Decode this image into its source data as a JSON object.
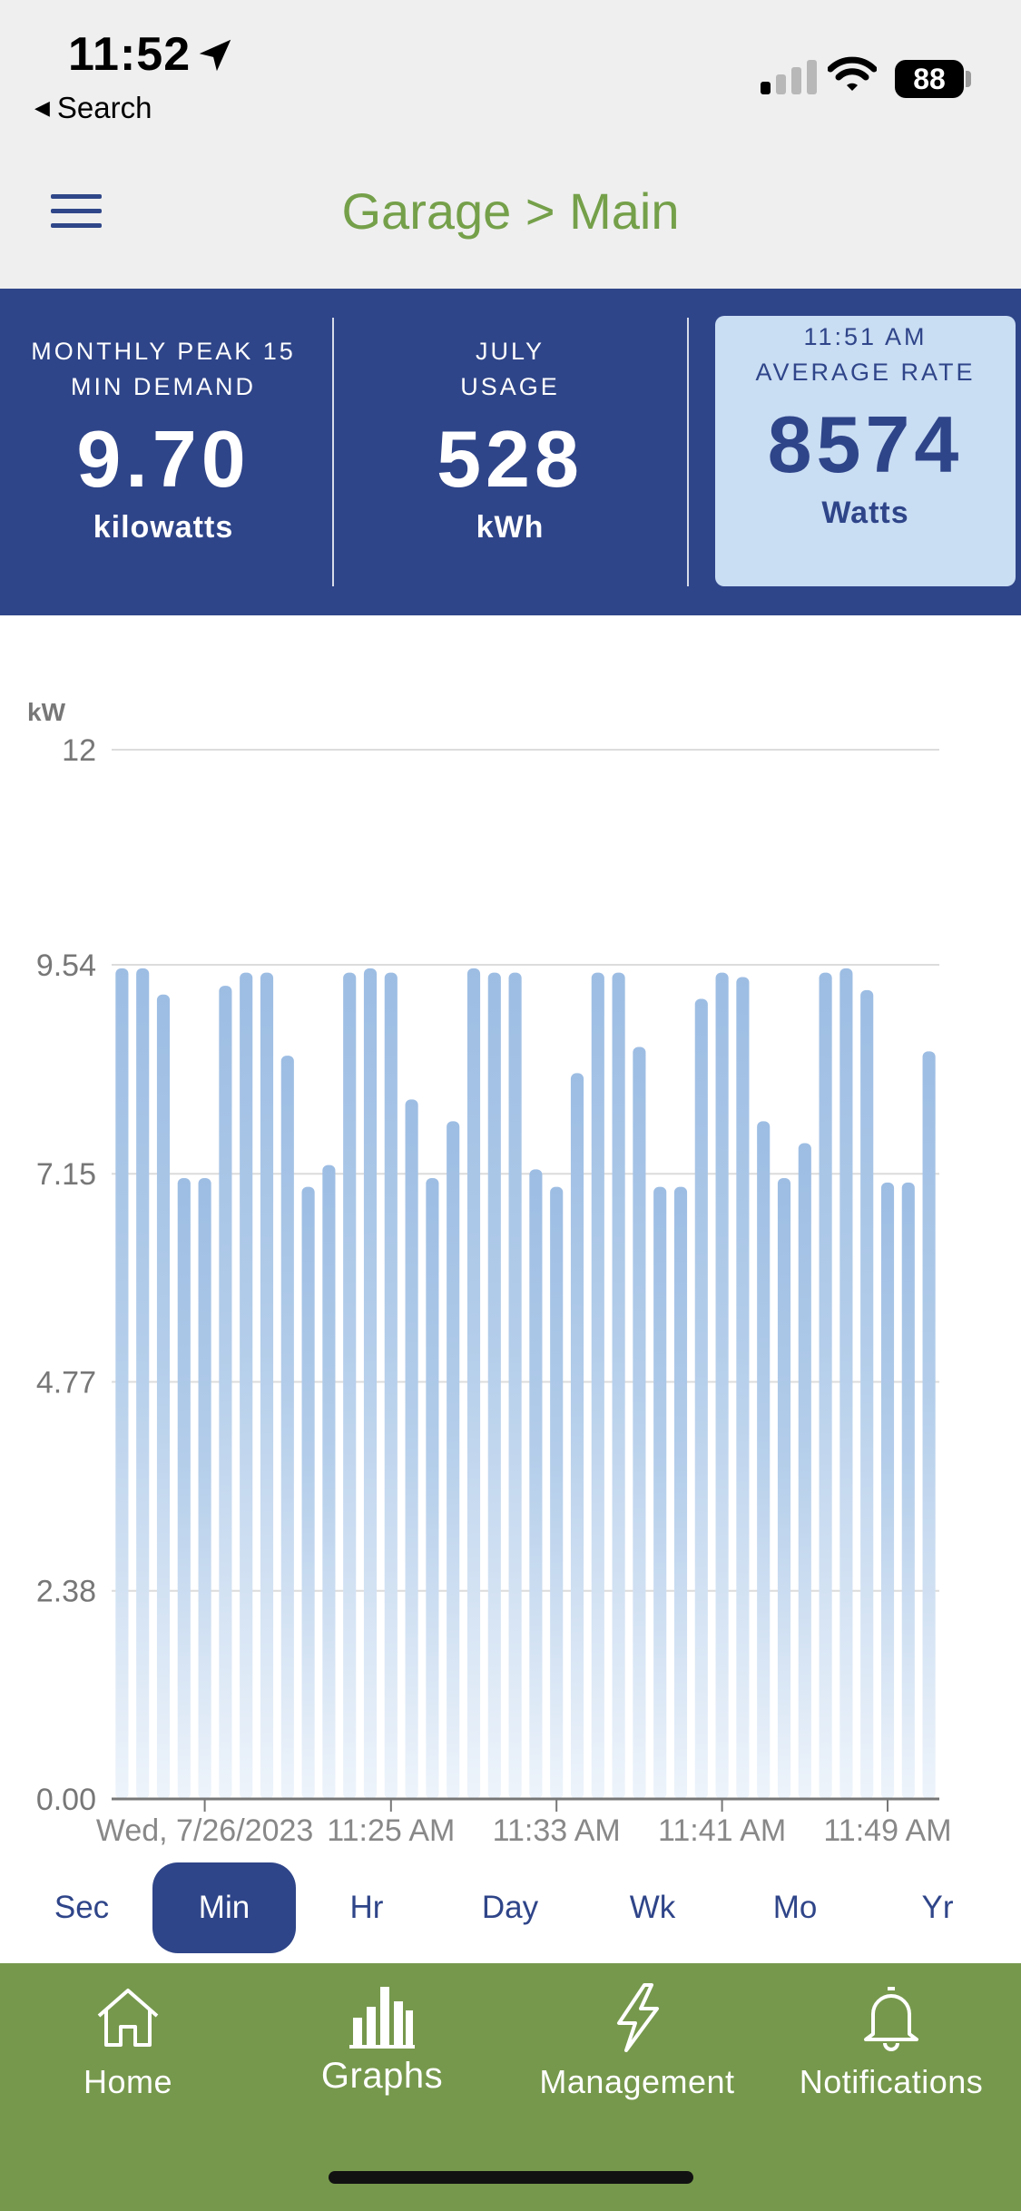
{
  "status_bar": {
    "time": "11:52",
    "back_label": "Search",
    "battery": "88"
  },
  "header": {
    "title": "Garage > Main"
  },
  "metrics": [
    {
      "label_line1": "MONTHLY PEAK 15",
      "label_line2": "MIN DEMAND",
      "value": "9.70",
      "unit": "kilowatts"
    },
    {
      "label_line1": "JULY",
      "label_line2": "USAGE",
      "value": "528",
      "unit": "kWh"
    },
    {
      "label_line1": "11:51 AM",
      "label_line2": "AVERAGE RATE",
      "value": "8574",
      "unit": "Watts"
    }
  ],
  "chart_data": {
    "type": "bar",
    "ylabel": "kW",
    "ylim": [
      0,
      12
    ],
    "y_ticks": [
      "12",
      "9.54",
      "7.15",
      "4.77",
      "2.38",
      "0.00"
    ],
    "y_tick_values": [
      12,
      9.54,
      7.15,
      4.77,
      2.38,
      0
    ],
    "x_tick_labels": [
      "Wed, 7/26/2023",
      "11:25 AM",
      "11:33 AM",
      "11:41 AM",
      "11:49 AM"
    ],
    "x_tick_indices": [
      4,
      13,
      21,
      29,
      37
    ],
    "grid": true,
    "bar_color": "#9dbde3",
    "values": [
      9.5,
      9.5,
      9.2,
      7.1,
      7.1,
      9.3,
      9.45,
      9.45,
      8.5,
      7.0,
      7.25,
      9.45,
      9.5,
      9.45,
      8.0,
      7.1,
      7.75,
      9.5,
      9.45,
      9.45,
      7.2,
      7.0,
      8.3,
      9.45,
      9.45,
      8.6,
      7.0,
      7.0,
      9.15,
      9.45,
      9.4,
      7.75,
      7.1,
      7.5,
      9.45,
      9.5,
      9.25,
      7.05,
      7.05,
      8.55
    ]
  },
  "period_tabs": {
    "items": [
      "Sec",
      "Min",
      "Hr",
      "Day",
      "Wk",
      "Mo",
      "Yr"
    ],
    "active": "Min"
  },
  "bottom_nav": {
    "items": [
      {
        "label": "Home",
        "icon": "home-icon"
      },
      {
        "label": "Graphs",
        "icon": "bar-chart-icon"
      },
      {
        "label": "Management",
        "icon": "lightning-icon"
      },
      {
        "label": "Notifications",
        "icon": "bell-icon"
      }
    ]
  },
  "colors": {
    "accent_blue": "#2f4589",
    "accent_green": "#76984c",
    "title_green": "#75a04a",
    "highlight_tile": "#c9ddf3"
  }
}
